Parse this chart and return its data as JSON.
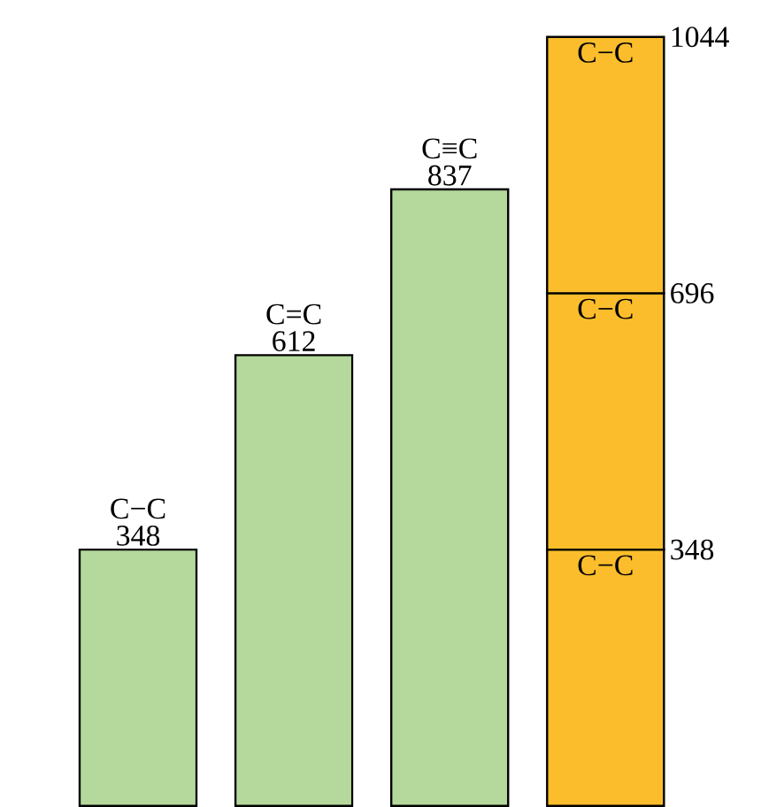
{
  "chart_data": {
    "type": "bar",
    "stacked": true,
    "categories": [
      null,
      null,
      null,
      null
    ],
    "series": [
      {
        "name": "C−C",
        "color": "#b5d99c",
        "values": [
          348,
          null,
          null,
          null
        ],
        "value_labels": [
          "348",
          null,
          null,
          null
        ]
      },
      {
        "name": "C=C",
        "color": "#b5d99c",
        "values": [
          null,
          612,
          null,
          null
        ],
        "value_labels": [
          null,
          "612",
          null,
          null
        ]
      },
      {
        "name": "C≡C",
        "color": "#b5d99c",
        "values": [
          null,
          null,
          837,
          null
        ],
        "value_labels": [
          null,
          null,
          "837",
          null
        ]
      },
      {
        "name": "C−C",
        "color": "#fbbd2b",
        "values": [
          null,
          null,
          null,
          348
        ]
      },
      {
        "name": "C−C",
        "color": "#fbbd2b",
        "values": [
          null,
          null,
          null,
          348
        ]
      },
      {
        "name": "C−C",
        "color": "#fbbd2b",
        "values": [
          null,
          null,
          null,
          348
        ]
      }
    ],
    "annotations": [
      "348",
      "696",
      "1044"
    ]
  }
}
